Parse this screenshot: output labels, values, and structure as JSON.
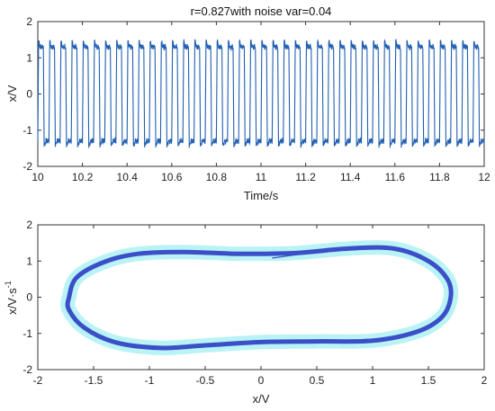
{
  "chart_data": [
    {
      "type": "line",
      "title": "r=0.827with noise var=0.04",
      "xlabel": "Time/s",
      "ylabel": "x/V",
      "xlim": [
        10,
        12
      ],
      "ylim": [
        -2,
        2
      ],
      "xticks": [
        "10",
        "10.2",
        "10.4",
        "10.6",
        "10.8",
        "11",
        "11.2",
        "11.4",
        "11.6",
        "11.8",
        "12"
      ],
      "yticks": [
        "2",
        "1",
        "0",
        "-1",
        "-2"
      ],
      "grid": false,
      "series": [
        {
          "color": "#1f5fb0",
          "waveform": "square-like oscillation with overshoot and small noise",
          "amplitude": 1.3,
          "overshoot_peak": 1.45,
          "cycles": 40,
          "period": 0.05
        }
      ]
    },
    {
      "type": "scatter",
      "title": "",
      "xlabel": "x/V",
      "ylabel": "x/V·s",
      "ylabel_superscript": "-1",
      "xlim": [
        -2,
        2
      ],
      "ylim": [
        -2,
        2
      ],
      "xticks": [
        "-2",
        "-1.5",
        "-1",
        "-0.5",
        "0",
        "0.5",
        "1",
        "1.5",
        "2"
      ],
      "yticks": [
        "2",
        "1",
        "0",
        "-1",
        "-2"
      ],
      "grid": false,
      "series": [
        {
          "color": "#3a4fc8",
          "halo_color": "#b9f3f5",
          "loop_points": [
            [
              -1.72,
              0.0
            ],
            [
              -1.65,
              0.55
            ],
            [
              -1.4,
              0.98
            ],
            [
              -1.1,
              1.2
            ],
            [
              -0.7,
              1.25
            ],
            [
              -0.2,
              1.2
            ],
            [
              0.3,
              1.22
            ],
            [
              0.8,
              1.35
            ],
            [
              1.2,
              1.34
            ],
            [
              1.5,
              1.0
            ],
            [
              1.67,
              0.5
            ],
            [
              1.7,
              0.0
            ],
            [
              1.62,
              -0.55
            ],
            [
              1.4,
              -0.95
            ],
            [
              1.0,
              -1.2
            ],
            [
              0.5,
              -1.22
            ],
            [
              0.0,
              -1.24
            ],
            [
              -0.5,
              -1.33
            ],
            [
              -0.9,
              -1.4
            ],
            [
              -1.3,
              -1.25
            ],
            [
              -1.58,
              -0.85
            ],
            [
              -1.72,
              -0.35
            ],
            [
              -1.72,
              0.0
            ]
          ],
          "transient_start": [
            0.1,
            1.08
          ],
          "transient_end": [
            0.95,
            1.35
          ]
        }
      ]
    }
  ]
}
